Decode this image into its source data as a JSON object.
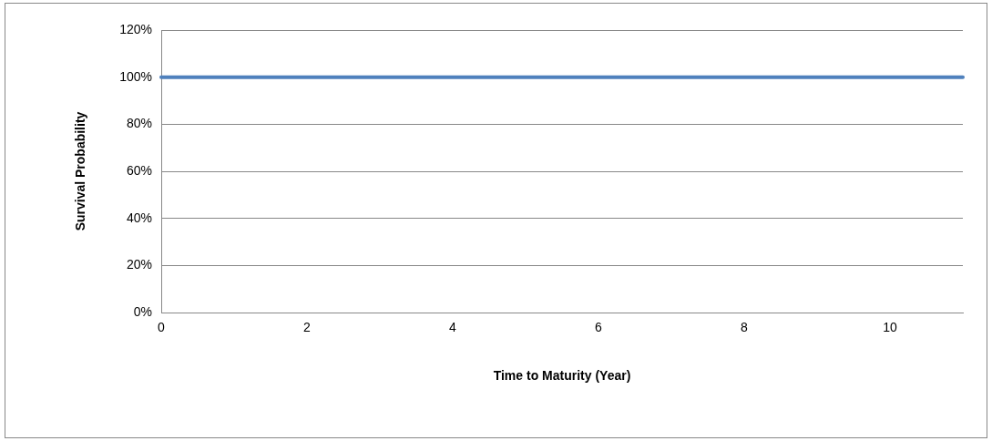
{
  "chart_data": {
    "type": "line",
    "xlabel": "Time to Maturity (Year)",
    "ylabel": "Survival Probability",
    "x": [
      0,
      11
    ],
    "series": [
      {
        "color": "#4f81bd",
        "values": [
          100,
          100
        ]
      }
    ],
    "xlim": [
      0,
      11
    ],
    "xticks": [
      0,
      2,
      4,
      6,
      8,
      10
    ],
    "ylim": [
      0,
      120
    ],
    "yticks": [
      {
        "value": 0,
        "label": "0%"
      },
      {
        "value": 20,
        "label": "20%"
      },
      {
        "value": 40,
        "label": "40%"
      },
      {
        "value": 60,
        "label": "60%"
      },
      {
        "value": 80,
        "label": "80%"
      },
      {
        "value": 100,
        "label": "100%"
      },
      {
        "value": 120,
        "label": "120%"
      }
    ],
    "grid": "y",
    "legend": false,
    "marker": "none",
    "line_style": "solid"
  }
}
